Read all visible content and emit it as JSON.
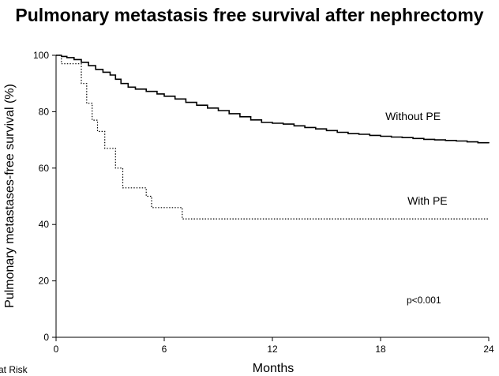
{
  "chart_data": {
    "type": "line",
    "title": "Pulmonary metastasis free survival after nephrectomy",
    "xlabel": "Months",
    "ylabel": "Pulmonary metastases-free survival (%)",
    "xlim": [
      0,
      24
    ],
    "ylim": [
      0,
      100
    ],
    "xticks": [
      0,
      6,
      12,
      18,
      24
    ],
    "yticks": [
      0,
      20,
      40,
      60,
      80,
      100
    ],
    "grid": false,
    "series": [
      {
        "name": "Without PE",
        "style": "solid",
        "color": "#000000",
        "x": [
          0,
          0.3,
          0.6,
          1.0,
          1.4,
          1.8,
          2.2,
          2.6,
          3.0,
          3.3,
          3.6,
          4.0,
          4.4,
          5.0,
          5.6,
          6.0,
          6.6,
          7.2,
          7.8,
          8.4,
          9.0,
          9.6,
          10.2,
          10.8,
          11.4,
          12.0,
          12.6,
          13.2,
          13.8,
          14.4,
          15.0,
          15.6,
          16.2,
          16.8,
          17.4,
          18.0,
          18.6,
          19.2,
          19.8,
          20.4,
          21.0,
          21.6,
          22.2,
          22.8,
          23.4,
          24.0
        ],
        "y": [
          100,
          99.6,
          99.2,
          98.5,
          97.5,
          96.3,
          95.0,
          94.0,
          93.0,
          91.5,
          90.0,
          88.7,
          88.0,
          87.2,
          86.3,
          85.5,
          84.5,
          83.3,
          82.3,
          81.3,
          80.4,
          79.3,
          78.2,
          77.1,
          76.2,
          75.9,
          75.6,
          75.0,
          74.4,
          73.9,
          73.3,
          72.7,
          72.2,
          72.0,
          71.6,
          71.3,
          71.0,
          70.8,
          70.5,
          70.2,
          70.0,
          69.8,
          69.6,
          69.3,
          69.0,
          68.8
        ]
      },
      {
        "name": "With PE",
        "style": "dotted",
        "color": "#000000",
        "x": [
          0,
          0.3,
          1.1,
          1.4,
          1.7,
          2.0,
          2.3,
          2.7,
          3.3,
          3.7,
          4.0,
          5.0,
          5.3,
          7.0,
          24.0
        ],
        "y": [
          100,
          97,
          97,
          90,
          83,
          77,
          73,
          67,
          60,
          53,
          53,
          50,
          46,
          42,
          42
        ]
      }
    ],
    "annotations": [
      {
        "text": "Without PE",
        "x": 19.8,
        "y": 77
      },
      {
        "text": "With PE",
        "x": 20.6,
        "y": 47
      },
      {
        "text": "p<0.001",
        "x": 20.4,
        "y": 12
      }
    ],
    "extra_label": "at Risk"
  }
}
